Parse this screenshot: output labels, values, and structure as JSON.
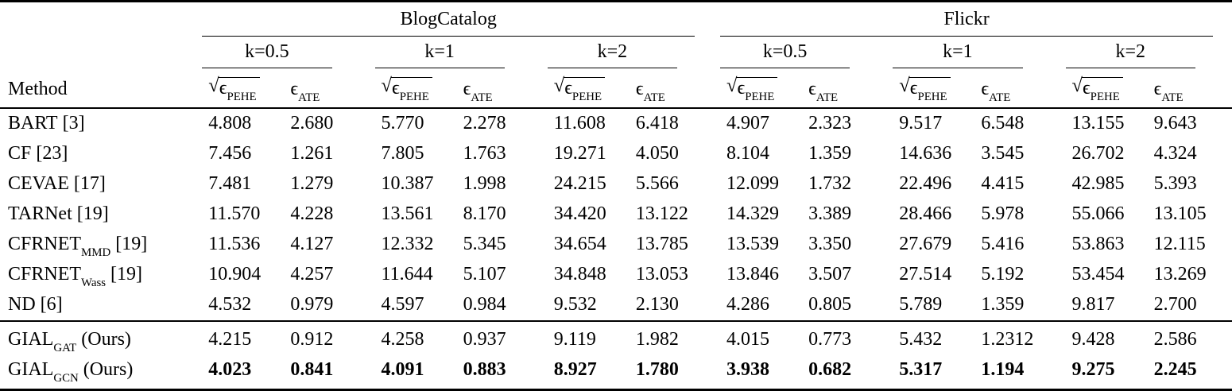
{
  "table": {
    "method_header": "Method",
    "groups": [
      {
        "label": "BlogCatalog"
      },
      {
        "label": "Flickr"
      }
    ],
    "k_headers": [
      "k=0.5",
      "k=1",
      "k=2",
      "k=0.5",
      "k=1",
      "k=2"
    ],
    "metric": {
      "sqrt": "√",
      "epsilon": "ϵ",
      "pehe": "PEHE",
      "ate": "ATE"
    },
    "rows": [
      {
        "method": {
          "name": "BART",
          "sub": "",
          "ref": " [3]"
        },
        "values": [
          "4.808",
          "2.680",
          "5.770",
          "2.278",
          "11.608",
          "6.418",
          "4.907",
          "2.323",
          "9.517",
          "6.548",
          "13.155",
          "9.643"
        ]
      },
      {
        "method": {
          "name": "CF",
          "sub": "",
          "ref": " [23]"
        },
        "values": [
          "7.456",
          "1.261",
          "7.805",
          "1.763",
          "19.271",
          "4.050",
          "8.104",
          "1.359",
          "14.636",
          "3.545",
          "26.702",
          "4.324"
        ]
      },
      {
        "method": {
          "name": "CEVAE",
          "sub": "",
          "ref": " [17]"
        },
        "values": [
          "7.481",
          "1.279",
          "10.387",
          "1.998",
          "24.215",
          "5.566",
          "12.099",
          "1.732",
          "22.496",
          "4.415",
          "42.985",
          "5.393"
        ]
      },
      {
        "method": {
          "name": "TARNet",
          "sub": "",
          "ref": " [19]"
        },
        "values": [
          "11.570",
          "4.228",
          "13.561",
          "8.170",
          "34.420",
          "13.122",
          "14.329",
          "3.389",
          "28.466",
          "5.978",
          "55.066",
          "13.105"
        ]
      },
      {
        "method": {
          "name": "CFRNET",
          "sub": "MMD",
          "ref": " [19]"
        },
        "values": [
          "11.536",
          "4.127",
          "12.332",
          "5.345",
          "34.654",
          "13.785",
          "13.539",
          "3.350",
          "27.679",
          "5.416",
          "53.863",
          "12.115"
        ]
      },
      {
        "method": {
          "name": "CFRNET",
          "sub": "Wass",
          "ref": " [19]"
        },
        "values": [
          "10.904",
          "4.257",
          "11.644",
          "5.107",
          "34.848",
          "13.053",
          "13.846",
          "3.507",
          "27.514",
          "5.192",
          "53.454",
          "13.269"
        ]
      },
      {
        "method": {
          "name": "ND",
          "sub": "",
          "ref": " [6]"
        },
        "values": [
          "4.532",
          "0.979",
          "4.597",
          "0.984",
          "9.532",
          "2.130",
          "4.286",
          "0.805",
          "5.789",
          "1.359",
          "9.817",
          "2.700"
        ]
      },
      {
        "method": {
          "name": "GIAL",
          "sub": "GAT",
          "ref": " (Ours)"
        },
        "values": [
          "4.215",
          "0.912",
          "4.258",
          "0.937",
          "9.119",
          "1.982",
          "4.015",
          "0.773",
          "5.432",
          "1.2312",
          "9.428",
          "2.586"
        ]
      },
      {
        "method": {
          "name": "GIAL",
          "sub": "GCN",
          "ref": " (Ours)"
        },
        "values": [
          "4.023",
          "0.841",
          "4.091",
          "0.883",
          "8.927",
          "1.780",
          "3.938",
          "0.682",
          "5.317",
          "1.194",
          "9.275",
          "2.245"
        ]
      }
    ]
  }
}
